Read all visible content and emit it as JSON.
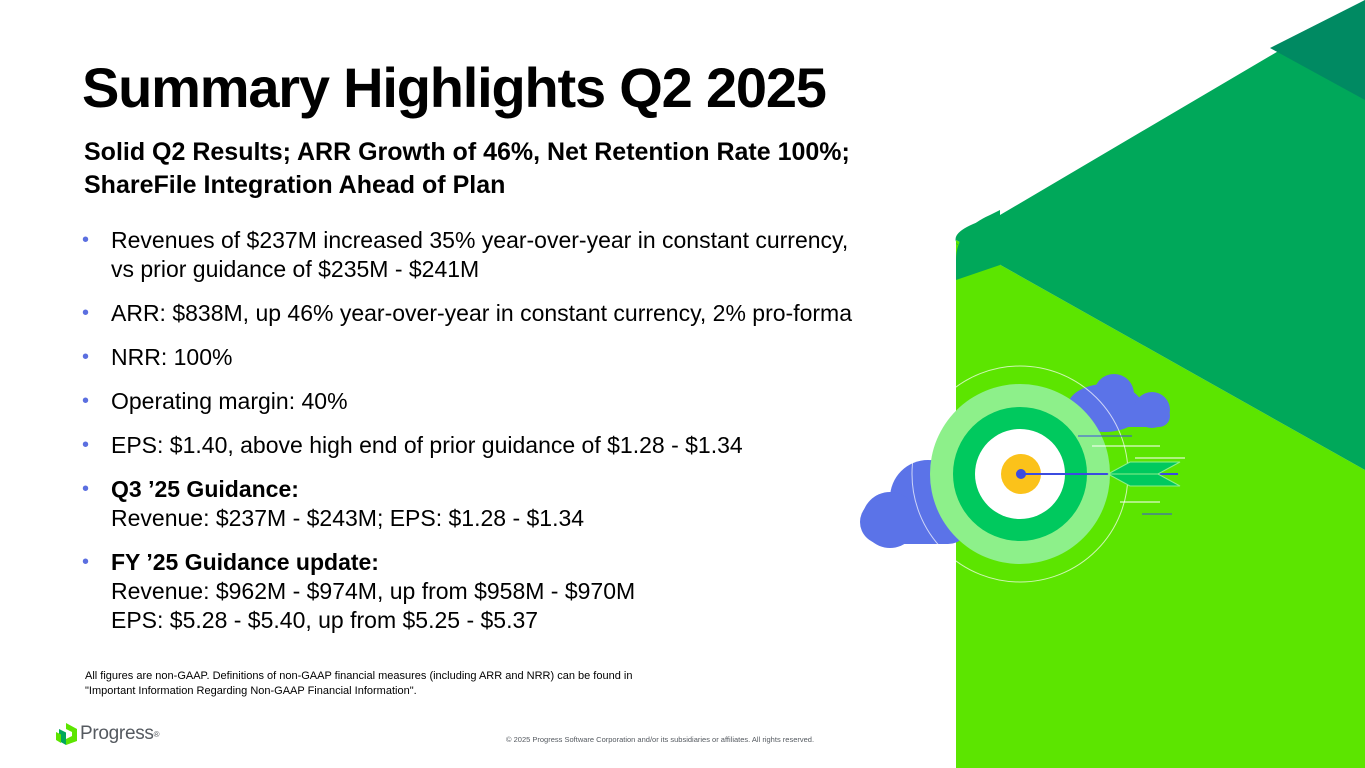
{
  "title": "Summary Highlights Q2 2025",
  "subtitle": {
    "line1": "Solid Q2 Results; ARR Growth of 46%, Net Retention Rate 100%;",
    "line2": "ShareFile Integration Ahead of Plan"
  },
  "bullets": [
    {
      "line1": "Revenues of $237M increased 35% year-over-year in constant currency,",
      "line2": "vs prior guidance of $235M - $241M"
    },
    {
      "line1": "ARR: $838M, up 46% year-over-year in constant currency, 2% pro-forma"
    },
    {
      "line1": "NRR: 100%"
    },
    {
      "line1": "Operating margin: 40%"
    },
    {
      "line1": "EPS: $1.40, above high end of prior guidance of $1.28 - $1.34"
    },
    {
      "heading": "Q3 ’25 Guidance:",
      "line1": "Revenue: $237M - $243M; EPS: $1.28 - $1.34"
    },
    {
      "heading": "FY ’25 Guidance update:",
      "line1": "Revenue: $962M - $974M, up from $958M - $970M",
      "line2": "EPS: $5.28 - $5.40, up from $5.25 - $5.37"
    }
  ],
  "bullet_symbol": "•",
  "footnote": {
    "line1": "All figures are non-GAAP. Definitions of non-GAAP financial measures (including ARR and NRR) can be found in",
    "line2": "\"Important Information Regarding Non-GAAP Financial Information\"."
  },
  "logo_text": "Progress",
  "logo_mark": "®",
  "copyright": "© 2025 Progress Software Corporation and/or its subsidiaries or affiliates. All rights reserved.",
  "colors": {
    "lime": "#5ce500",
    "green": "#00a85a",
    "dark_green": "#008a62",
    "bullet": "#5b6fe0",
    "cloud": "#5b73e8",
    "target_outer": "#8df08a",
    "target_mid": "#00c95e",
    "bullseye": "#fbc21a"
  },
  "icons": {
    "decoration": "target-with-arrow-and-clouds-illustration",
    "logo": "progress-logo-icon"
  }
}
